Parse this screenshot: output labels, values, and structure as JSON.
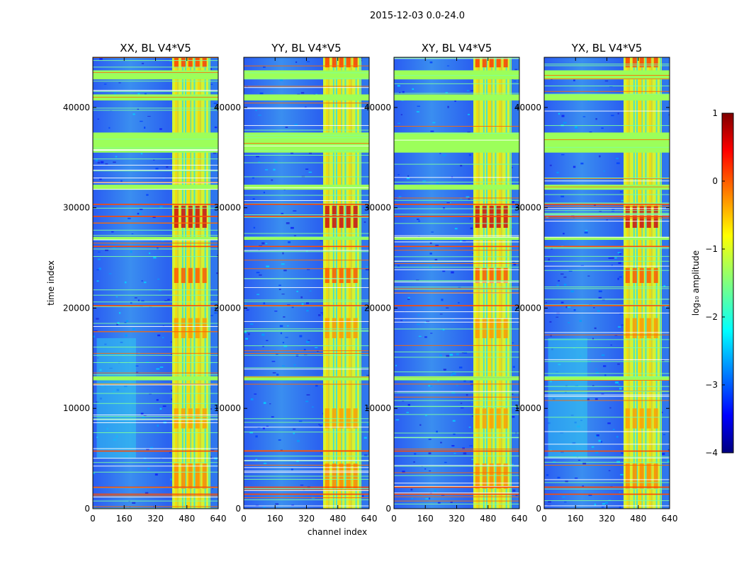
{
  "chart_data": {
    "type": "heatmap",
    "suptitle": "2015-12-03 0.0-24.0",
    "xlabel": "channel index",
    "ylabel": "time index",
    "x_ticks": [
      "0",
      "160",
      "320",
      "480",
      "640"
    ],
    "y_ticks": [
      "0",
      "10000",
      "20000",
      "30000",
      "40000"
    ],
    "xlim": [
      0,
      640
    ],
    "ylim": [
      0,
      45000
    ],
    "panels": [
      {
        "title": "XX, BL V4*V5"
      },
      {
        "title": "YY, BL V4*V5"
      },
      {
        "title": "XY, BL V4*V5"
      },
      {
        "title": "YX, BL V4*V5"
      }
    ],
    "colorbar": {
      "label": "log₁₀ amplitude",
      "ticks": [
        "1",
        "0",
        "−1",
        "−2",
        "−3",
        "−4"
      ],
      "range": [
        -4,
        1
      ],
      "colormap": "jet"
    }
  }
}
